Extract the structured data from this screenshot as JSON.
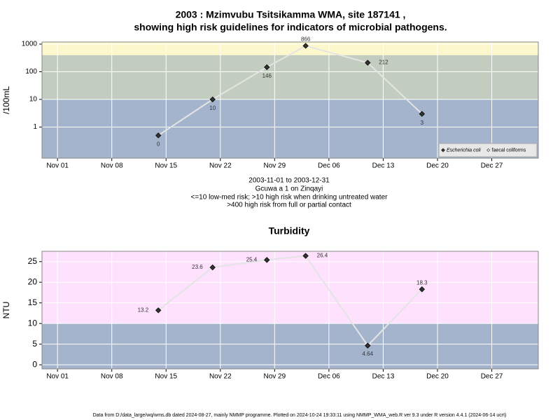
{
  "chart_data": [
    {
      "type": "line",
      "title": [
        "2003 : Mzimvubu Tsitsikamma WMA, site 187141 ,",
        "showing high risk guidelines for indicators of microbial pathogens."
      ],
      "notes": [
        "2003-11-01 to 2003-12-31",
        "Gcuwa a 1 on Zinqayi",
        "<=10 low-med risk; >10 high risk when drinking untreated water",
        ">400 high risk from full or partial contact"
      ],
      "y_label": "/100mL",
      "log_y": true,
      "x": [
        "Nov 14",
        "Nov 21",
        "Nov 28",
        "Dec 03",
        "Dec 11",
        "Dec 18"
      ],
      "series": [
        {
          "name": "Escherichia coli",
          "color": "#333333",
          "values": [
            0.5,
            10,
            146,
            866,
            212,
            3
          ],
          "value_labels": [
            "0",
            "10",
            "146",
            "866",
            "212",
            "3"
          ]
        },
        {
          "name": "faecal coliforms",
          "color": "#ffffff",
          "values": [
            null,
            null,
            null,
            null,
            null,
            null
          ]
        }
      ],
      "xlim": [
        "Oct 30",
        "Jan 02"
      ],
      "xticks": [
        "Nov 01",
        "Nov 08",
        "Nov 15",
        "Nov 22",
        "Nov 29",
        "Dec 06",
        "Dec 13",
        "Dec 20",
        "Dec 27"
      ],
      "ylim": [
        0.075,
        1190
      ],
      "yticks": [
        1,
        10,
        100,
        1000
      ],
      "thresholds": [
        10,
        400
      ],
      "band_colors": [
        "#a3b4cc",
        "#c3cdbf",
        "#fdf7cc"
      ],
      "line_color": "#e4e4e4",
      "grid": true,
      "legend": "lower right"
    },
    {
      "type": "line",
      "title": "Turbidity",
      "y_label": "NTU",
      "log_y": false,
      "x": [
        "Nov 14",
        "Nov 21",
        "Nov 28",
        "Dec 03",
        "Dec 11",
        "Dec 18"
      ],
      "series": [
        {
          "name": "Turbidity",
          "color": "#333333",
          "values": [
            13.2,
            23.6,
            25.4,
            26.4,
            4.64,
            18.3
          ]
        }
      ],
      "xlim": [
        "Oct 30",
        "Jan 02"
      ],
      "xticks": [
        "Nov 01",
        "Nov 08",
        "Nov 15",
        "Nov 22",
        "Nov 29",
        "Dec 06",
        "Dec 13",
        "Dec 20",
        "Dec 27"
      ],
      "ylim": [
        -1.0,
        27.5
      ],
      "yticks": [
        0,
        5,
        10,
        15,
        20,
        25
      ],
      "thresholds": [
        10
      ],
      "band_colors": [
        "#a3b4cc",
        "#fde1fd"
      ],
      "line_color": "#e4e4e4",
      "grid": true
    }
  ],
  "footer": "Data from D:/data_large/wq/wms.db dated 2024-08-27, mainly NMMP programme. Plotted on 2024-10-24 19:33:11 using NMMP_WMA_web.R ver 9.3 under R version 4.4.1 (2024-06-14 ucrt)"
}
